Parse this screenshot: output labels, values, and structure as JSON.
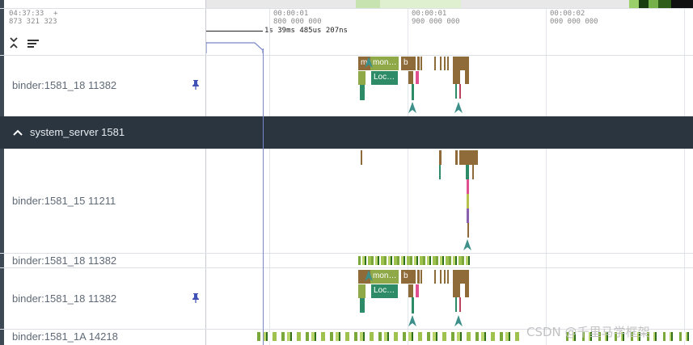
{
  "timeline": {
    "left_time": "04:37:33",
    "left_ns": "873 321 323",
    "plus": "+",
    "ticks": [
      {
        "t": "00:00:01",
        "ns": "800 000 000"
      },
      {
        "t": "00:00:01",
        "ns": "900 000 000"
      },
      {
        "t": "00:00:02",
        "ns": "000 000 000"
      }
    ],
    "measure": "1s 39ms 485us 207ns"
  },
  "tracks": {
    "t1_label": "binder:1581_18 11382",
    "group_title": "system_server 1581",
    "t2_label": "binder:1581_15 11211",
    "t3_label": "binder:1581_18 11382",
    "t4_label": "binder:1581_18 11382",
    "t5_label": "binder:1581_1A 14218"
  },
  "slices": {
    "mon1": "mon…",
    "b1": "b",
    "loc1": "Loc…",
    "mon2": "mon…",
    "b2": "b",
    "loc2": "Loc…"
  },
  "watermark": "CSDN @千里马学框架",
  "colors": {
    "header_dark": "#2a3540",
    "slice_brown": "#8f6b3a",
    "slice_olive": "#9ab04a",
    "slice_teal": "#2e8b67",
    "arrow": "#3d8f8a",
    "selection": "#7a88c9"
  },
  "icons": [
    "collapse-all-icon",
    "sort-icon",
    "pin-icon",
    "chevron-up-icon"
  ]
}
